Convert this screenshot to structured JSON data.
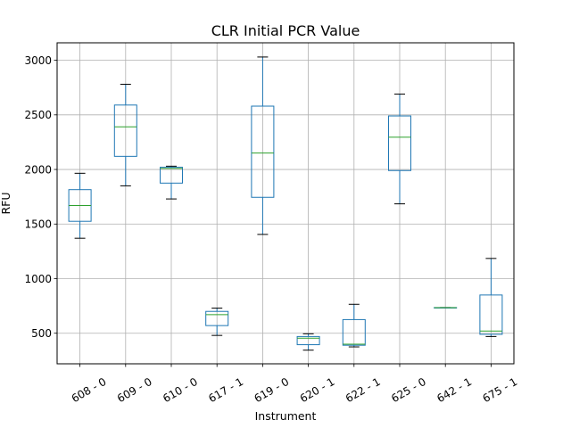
{
  "chart_data": {
    "type": "box",
    "title": "CLR Initial PCR Value",
    "xlabel": "Instrument",
    "ylabel": "RFU",
    "ylim": [
      220,
      3160
    ],
    "yticks": [
      500,
      1000,
      1500,
      2000,
      2500,
      3000
    ],
    "grid": true,
    "categories": [
      "608 - 0",
      "609 - 0",
      "610 - 0",
      "617 - 1",
      "619 - 0",
      "620 - 1",
      "622 - 1",
      "625 - 0",
      "642 - 1",
      "675 - 1"
    ],
    "boxes": [
      {
        "whisker_low": 1370,
        "q1": 1525,
        "median": 1670,
        "q3": 1815,
        "whisker_high": 1965
      },
      {
        "whisker_low": 1850,
        "q1": 2120,
        "median": 2390,
        "q3": 2590,
        "whisker_high": 2780
      },
      {
        "whisker_low": 1730,
        "q1": 1875,
        "median": 2010,
        "q3": 2020,
        "whisker_high": 2030
      },
      {
        "whisker_low": 480,
        "q1": 570,
        "median": 670,
        "q3": 700,
        "whisker_high": 730
      },
      {
        "whisker_low": 1405,
        "q1": 1745,
        "median": 2150,
        "q3": 2580,
        "whisker_high": 3030
      },
      {
        "whisker_low": 345,
        "q1": 395,
        "median": 455,
        "q3": 470,
        "whisker_high": 495
      },
      {
        "whisker_low": 375,
        "q1": 390,
        "median": 400,
        "q3": 625,
        "whisker_high": 765
      },
      {
        "whisker_low": 1685,
        "q1": 1990,
        "median": 2295,
        "q3": 2490,
        "whisker_high": 2690
      },
      {
        "whisker_low": 735,
        "q1": 735,
        "median": 735,
        "q3": 735,
        "whisker_high": 735
      },
      {
        "whisker_low": 470,
        "q1": 490,
        "median": 520,
        "q3": 850,
        "whisker_high": 1185
      }
    ],
    "colors": {
      "box": "#1f77b4",
      "median": "#2ca02c",
      "whisker_cap": "#000000",
      "grid": "#b0b0b0"
    }
  }
}
